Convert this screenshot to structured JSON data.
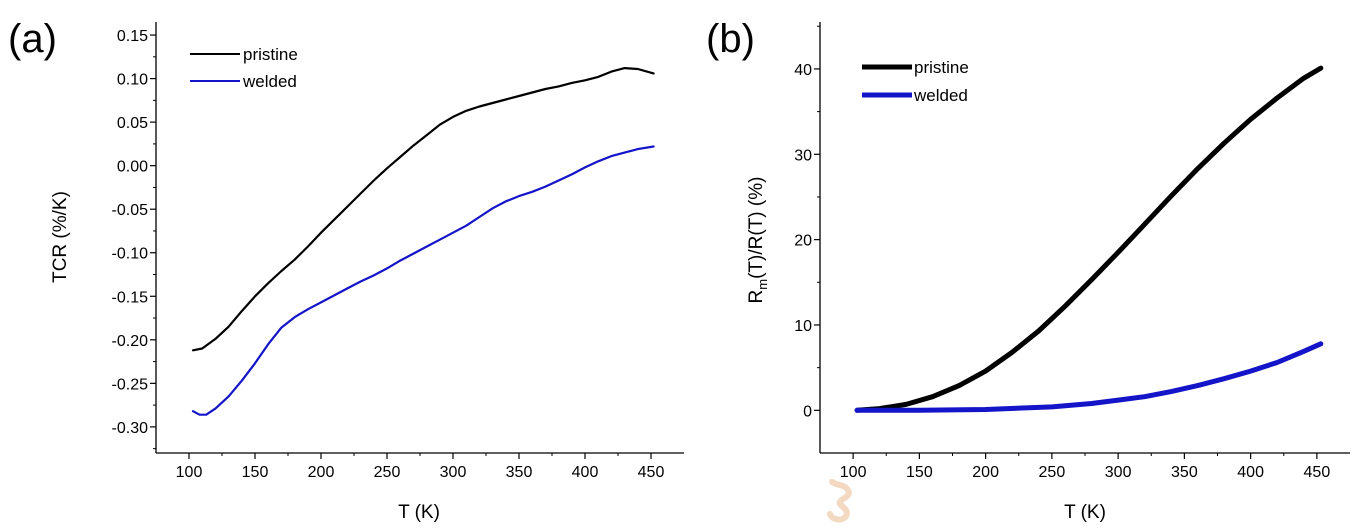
{
  "chart_data": [
    {
      "type": "line",
      "panel_label": "(a)",
      "xlabel": "T (K)",
      "ylabel": "TCR (%/K)",
      "xlim": [
        75,
        475
      ],
      "ylim": [
        -0.33,
        0.165
      ],
      "xticks": [
        100,
        150,
        200,
        250,
        300,
        350,
        400,
        450
      ],
      "yticks": [
        -0.3,
        -0.25,
        -0.2,
        -0.15,
        -0.1,
        -0.05,
        0.0,
        0.05,
        0.1,
        0.15
      ],
      "xtick_labels": [
        "100",
        "150",
        "200",
        "250",
        "300",
        "350",
        "400",
        "450"
      ],
      "ytick_labels": [
        "-0.30",
        "-0.25",
        "-0.20",
        "-0.15",
        "-0.10",
        "-0.05",
        "0.00",
        "0.05",
        "0.10",
        "0.15"
      ],
      "legend_position": "top-left",
      "series": [
        {
          "name": "pristine",
          "color": "#000000",
          "x": [
            103,
            110,
            120,
            130,
            140,
            150,
            160,
            170,
            180,
            190,
            200,
            210,
            220,
            230,
            240,
            250,
            260,
            270,
            280,
            290,
            300,
            310,
            320,
            330,
            340,
            350,
            360,
            370,
            380,
            390,
            400,
            410,
            420,
            430,
            440,
            452
          ],
          "y": [
            -0.212,
            -0.21,
            -0.199,
            -0.185,
            -0.167,
            -0.15,
            -0.135,
            -0.121,
            -0.108,
            -0.093,
            -0.077,
            -0.062,
            -0.047,
            -0.032,
            -0.017,
            -0.003,
            0.01,
            0.023,
            0.035,
            0.047,
            0.056,
            0.063,
            0.068,
            0.072,
            0.076,
            0.08,
            0.084,
            0.088,
            0.091,
            0.095,
            0.098,
            0.102,
            0.108,
            0.112,
            0.111,
            0.106
          ]
        },
        {
          "name": "welded",
          "color": "#1414c8",
          "x": [
            103,
            108,
            113,
            120,
            130,
            140,
            150,
            160,
            170,
            180,
            190,
            200,
            210,
            220,
            230,
            240,
            250,
            260,
            270,
            280,
            290,
            300,
            310,
            320,
            330,
            340,
            350,
            360,
            370,
            380,
            390,
            400,
            410,
            420,
            430,
            440,
            452
          ],
          "y": [
            -0.282,
            -0.286,
            -0.286,
            -0.279,
            -0.265,
            -0.247,
            -0.227,
            -0.205,
            -0.186,
            -0.174,
            -0.165,
            -0.157,
            -0.149,
            -0.141,
            -0.133,
            -0.126,
            -0.118,
            -0.109,
            -0.101,
            -0.093,
            -0.085,
            -0.077,
            -0.069,
            -0.059,
            -0.049,
            -0.041,
            -0.035,
            -0.03,
            -0.024,
            -0.017,
            -0.01,
            -0.002,
            0.005,
            0.011,
            0.015,
            0.019,
            0.022
          ]
        }
      ]
    },
    {
      "type": "line",
      "panel_label": "(b)",
      "xlabel": "T (K)",
      "ylabel_main": "R",
      "ylabel_sub": "m",
      "ylabel_rest": "(T)/R(T) (%)",
      "xlim": [
        75,
        475
      ],
      "ylim": [
        -5,
        45.5
      ],
      "xticks": [
        100,
        150,
        200,
        250,
        300,
        350,
        400,
        450
      ],
      "yticks": [
        0,
        10,
        20,
        30,
        40
      ],
      "xtick_labels": [
        "100",
        "150",
        "200",
        "250",
        "300",
        "350",
        "400",
        "450"
      ],
      "ytick_labels": [
        "0",
        "10",
        "20",
        "30",
        "40"
      ],
      "legend_position": "top-left",
      "series": [
        {
          "name": "pristine",
          "color": "#000000",
          "x": [
            103,
            120,
            140,
            160,
            180,
            200,
            220,
            240,
            260,
            280,
            300,
            320,
            340,
            360,
            380,
            400,
            420,
            440,
            453
          ],
          "y": [
            0.0,
            0.2,
            0.7,
            1.6,
            2.9,
            4.6,
            6.8,
            9.3,
            12.2,
            15.3,
            18.5,
            21.8,
            25.1,
            28.3,
            31.3,
            34.1,
            36.6,
            38.9,
            40.1
          ]
        },
        {
          "name": "welded",
          "color": "#1414c8",
          "x": [
            103,
            150,
            200,
            250,
            280,
            300,
            320,
            340,
            360,
            380,
            400,
            420,
            440,
            453
          ],
          "y": [
            0.0,
            0.0,
            0.1,
            0.4,
            0.8,
            1.2,
            1.6,
            2.2,
            2.9,
            3.7,
            4.6,
            5.6,
            6.9,
            7.8
          ]
        }
      ]
    }
  ]
}
